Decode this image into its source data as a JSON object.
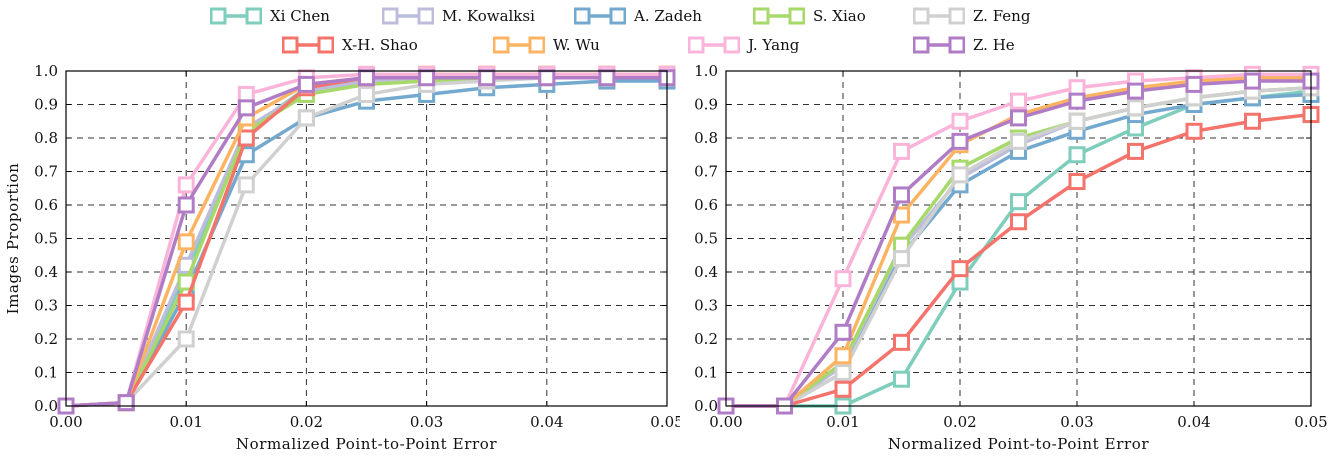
{
  "legend": [
    {
      "name": "Xi Chen",
      "color": "#7fcdbb"
    },
    {
      "name": "M. Kowalksi",
      "color": "#bcbddc"
    },
    {
      "name": "A. Zadeh",
      "color": "#74a9cf"
    },
    {
      "name": "S. Xiao",
      "color": "#a6d96a"
    },
    {
      "name": "Z. Feng",
      "color": "#d0d0d0"
    },
    {
      "name": "X-H. Shao",
      "color": "#f4736b"
    },
    {
      "name": "W. Wu",
      "color": "#fdb462"
    },
    {
      "name": "J. Yang",
      "color": "#fbb4d9"
    },
    {
      "name": "Z. He",
      "color": "#b07cc6"
    }
  ],
  "chart_data": [
    {
      "type": "line",
      "xlabel": "Normalized Point-to-Point Error",
      "ylabel": "Images Proportion",
      "xlim": [
        0,
        0.05
      ],
      "ylim": [
        0,
        1
      ],
      "xticks": [
        "0.00",
        "0.01",
        "0.02",
        "0.03",
        "0.04",
        "0.05"
      ],
      "yticks": [
        "0.0",
        "0.1",
        "0.2",
        "0.3",
        "0.4",
        "0.5",
        "0.6",
        "0.7",
        "0.8",
        "0.9",
        "1.0"
      ],
      "grid": true,
      "x": [
        0,
        0.005,
        0.01,
        0.015,
        0.02,
        0.025,
        0.03,
        0.035,
        0.04,
        0.045,
        0.05
      ],
      "series": [
        {
          "name": "Xi Chen",
          "color": "#7fcdbb",
          "values": [
            0,
            0.01,
            0.4,
            0.82,
            0.95,
            0.98,
            0.98,
            0.99,
            0.99,
            0.99,
            0.99
          ]
        },
        {
          "name": "M. Kowalksi",
          "color": "#bcbddc",
          "values": [
            0,
            0.01,
            0.42,
            0.83,
            0.94,
            0.97,
            0.98,
            0.98,
            0.98,
            0.98,
            0.98
          ]
        },
        {
          "name": "A. Zadeh",
          "color": "#74a9cf",
          "values": [
            0,
            0.01,
            0.34,
            0.75,
            0.86,
            0.91,
            0.93,
            0.95,
            0.96,
            0.97,
            0.97
          ]
        },
        {
          "name": "S. Xiao",
          "color": "#a6d96a",
          "values": [
            0,
            0.01,
            0.37,
            0.82,
            0.93,
            0.96,
            0.97,
            0.98,
            0.98,
            0.98,
            0.98
          ]
        },
        {
          "name": "Z. Feng",
          "color": "#d0d0d0",
          "values": [
            0,
            0.01,
            0.2,
            0.66,
            0.86,
            0.93,
            0.96,
            0.97,
            0.98,
            0.98,
            0.98
          ]
        },
        {
          "name": "X-H. Shao",
          "color": "#f4736b",
          "values": [
            0,
            0.01,
            0.31,
            0.8,
            0.95,
            0.98,
            0.99,
            0.99,
            0.99,
            0.99,
            0.99
          ]
        },
        {
          "name": "W. Wu",
          "color": "#fdb462",
          "values": [
            0,
            0.01,
            0.49,
            0.86,
            0.96,
            0.98,
            0.99,
            0.99,
            0.99,
            0.99,
            0.99
          ]
        },
        {
          "name": "J. Yang",
          "color": "#fbb4d9",
          "values": [
            0,
            0.01,
            0.66,
            0.93,
            0.98,
            0.99,
            0.99,
            0.99,
            0.99,
            0.99,
            0.99
          ]
        },
        {
          "name": "Z. He",
          "color": "#b07cc6",
          "values": [
            0,
            0.01,
            0.6,
            0.89,
            0.96,
            0.98,
            0.98,
            0.98,
            0.98,
            0.98,
            0.98
          ]
        }
      ]
    },
    {
      "type": "line",
      "xlabel": "Normalized Point-to-Point Error",
      "ylabel": "",
      "xlim": [
        0,
        0.05
      ],
      "ylim": [
        0,
        1
      ],
      "xticks": [
        "0.00",
        "0.01",
        "0.02",
        "0.03",
        "0.04",
        "0.05"
      ],
      "yticks": [
        "0.0",
        "0.1",
        "0.2",
        "0.3",
        "0.4",
        "0.5",
        "0.6",
        "0.7",
        "0.8",
        "0.9",
        "1.0"
      ],
      "grid": true,
      "x": [
        0,
        0.005,
        0.01,
        0.015,
        0.02,
        0.025,
        0.03,
        0.035,
        0.04,
        0.045,
        0.05
      ],
      "series": [
        {
          "name": "Xi Chen",
          "color": "#7fcdbb",
          "values": [
            0,
            0,
            0,
            0.08,
            0.37,
            0.61,
            0.75,
            0.83,
            0.9,
            0.92,
            0.94
          ]
        },
        {
          "name": "M. Kowalksi",
          "color": "#bcbddc",
          "values": [
            0,
            0,
            0.12,
            0.47,
            0.68,
            0.78,
            0.85,
            0.89,
            0.92,
            0.94,
            0.95
          ]
        },
        {
          "name": "A. Zadeh",
          "color": "#74a9cf",
          "values": [
            0,
            0,
            0.1,
            0.45,
            0.66,
            0.76,
            0.82,
            0.87,
            0.9,
            0.92,
            0.93
          ]
        },
        {
          "name": "S. Xiao",
          "color": "#a6d96a",
          "values": [
            0,
            0,
            0.13,
            0.48,
            0.71,
            0.8,
            0.85,
            0.89,
            0.92,
            0.94,
            0.95
          ]
        },
        {
          "name": "Z. Feng",
          "color": "#d0d0d0",
          "values": [
            0,
            0,
            0.1,
            0.44,
            0.69,
            0.79,
            0.85,
            0.89,
            0.92,
            0.94,
            0.95
          ]
        },
        {
          "name": "X-H. Shao",
          "color": "#f4736b",
          "values": [
            0,
            0,
            0.05,
            0.19,
            0.41,
            0.55,
            0.67,
            0.76,
            0.82,
            0.85,
            0.87
          ]
        },
        {
          "name": "W. Wu",
          "color": "#fdb462",
          "values": [
            0,
            0,
            0.15,
            0.57,
            0.78,
            0.87,
            0.92,
            0.95,
            0.97,
            0.98,
            0.98
          ]
        },
        {
          "name": "J. Yang",
          "color": "#fbb4d9",
          "values": [
            0,
            0,
            0.38,
            0.76,
            0.85,
            0.91,
            0.95,
            0.97,
            0.98,
            0.99,
            0.99
          ]
        },
        {
          "name": "Z. He",
          "color": "#b07cc6",
          "values": [
            0,
            0,
            0.22,
            0.63,
            0.79,
            0.86,
            0.91,
            0.94,
            0.96,
            0.97,
            0.97
          ]
        }
      ]
    }
  ]
}
